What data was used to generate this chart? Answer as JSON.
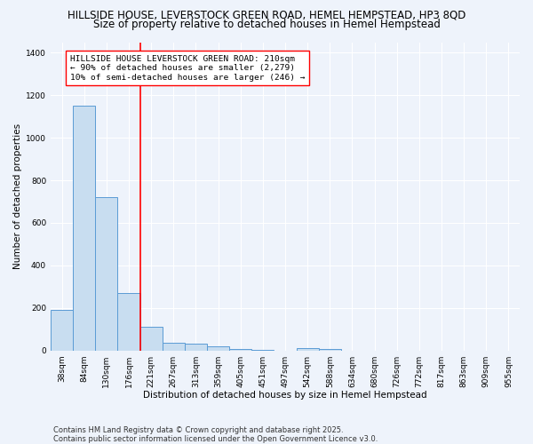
{
  "title1": "HILLSIDE HOUSE, LEVERSTOCK GREEN ROAD, HEMEL HEMPSTEAD, HP3 8QD",
  "title2": "Size of property relative to detached houses in Hemel Hempstead",
  "xlabel": "Distribution of detached houses by size in Hemel Hempstead",
  "ylabel": "Number of detached properties",
  "footnote1": "Contains HM Land Registry data © Crown copyright and database right 2025.",
  "footnote2": "Contains public sector information licensed under the Open Government Licence v3.0.",
  "bin_labels": [
    "38sqm",
    "84sqm",
    "130sqm",
    "176sqm",
    "221sqm",
    "267sqm",
    "313sqm",
    "359sqm",
    "405sqm",
    "451sqm",
    "497sqm",
    "542sqm",
    "588sqm",
    "634sqm",
    "680sqm",
    "726sqm",
    "772sqm",
    "817sqm",
    "863sqm",
    "909sqm",
    "955sqm"
  ],
  "bar_heights": [
    190,
    1150,
    720,
    270,
    110,
    35,
    32,
    20,
    8,
    3,
    0,
    10,
    8,
    0,
    0,
    0,
    0,
    0,
    0,
    0,
    0
  ],
  "bar_color": "#c8ddf0",
  "bar_edge_color": "#5b9bd5",
  "vline_color": "red",
  "annotation_text": "HILLSIDE HOUSE LEVERSTOCK GREEN ROAD: 210sqm\n← 90% of detached houses are smaller (2,279)\n10% of semi-detached houses are larger (246) →",
  "ylim": [
    0,
    1450
  ],
  "background_color": "#eef3fb",
  "grid_color": "#ffffff",
  "title_fontsize": 8.5,
  "subtitle_fontsize": 8.5,
  "axis_label_fontsize": 7.5,
  "tick_fontsize": 6.5,
  "annotation_fontsize": 6.8,
  "footnote_fontsize": 6.0
}
